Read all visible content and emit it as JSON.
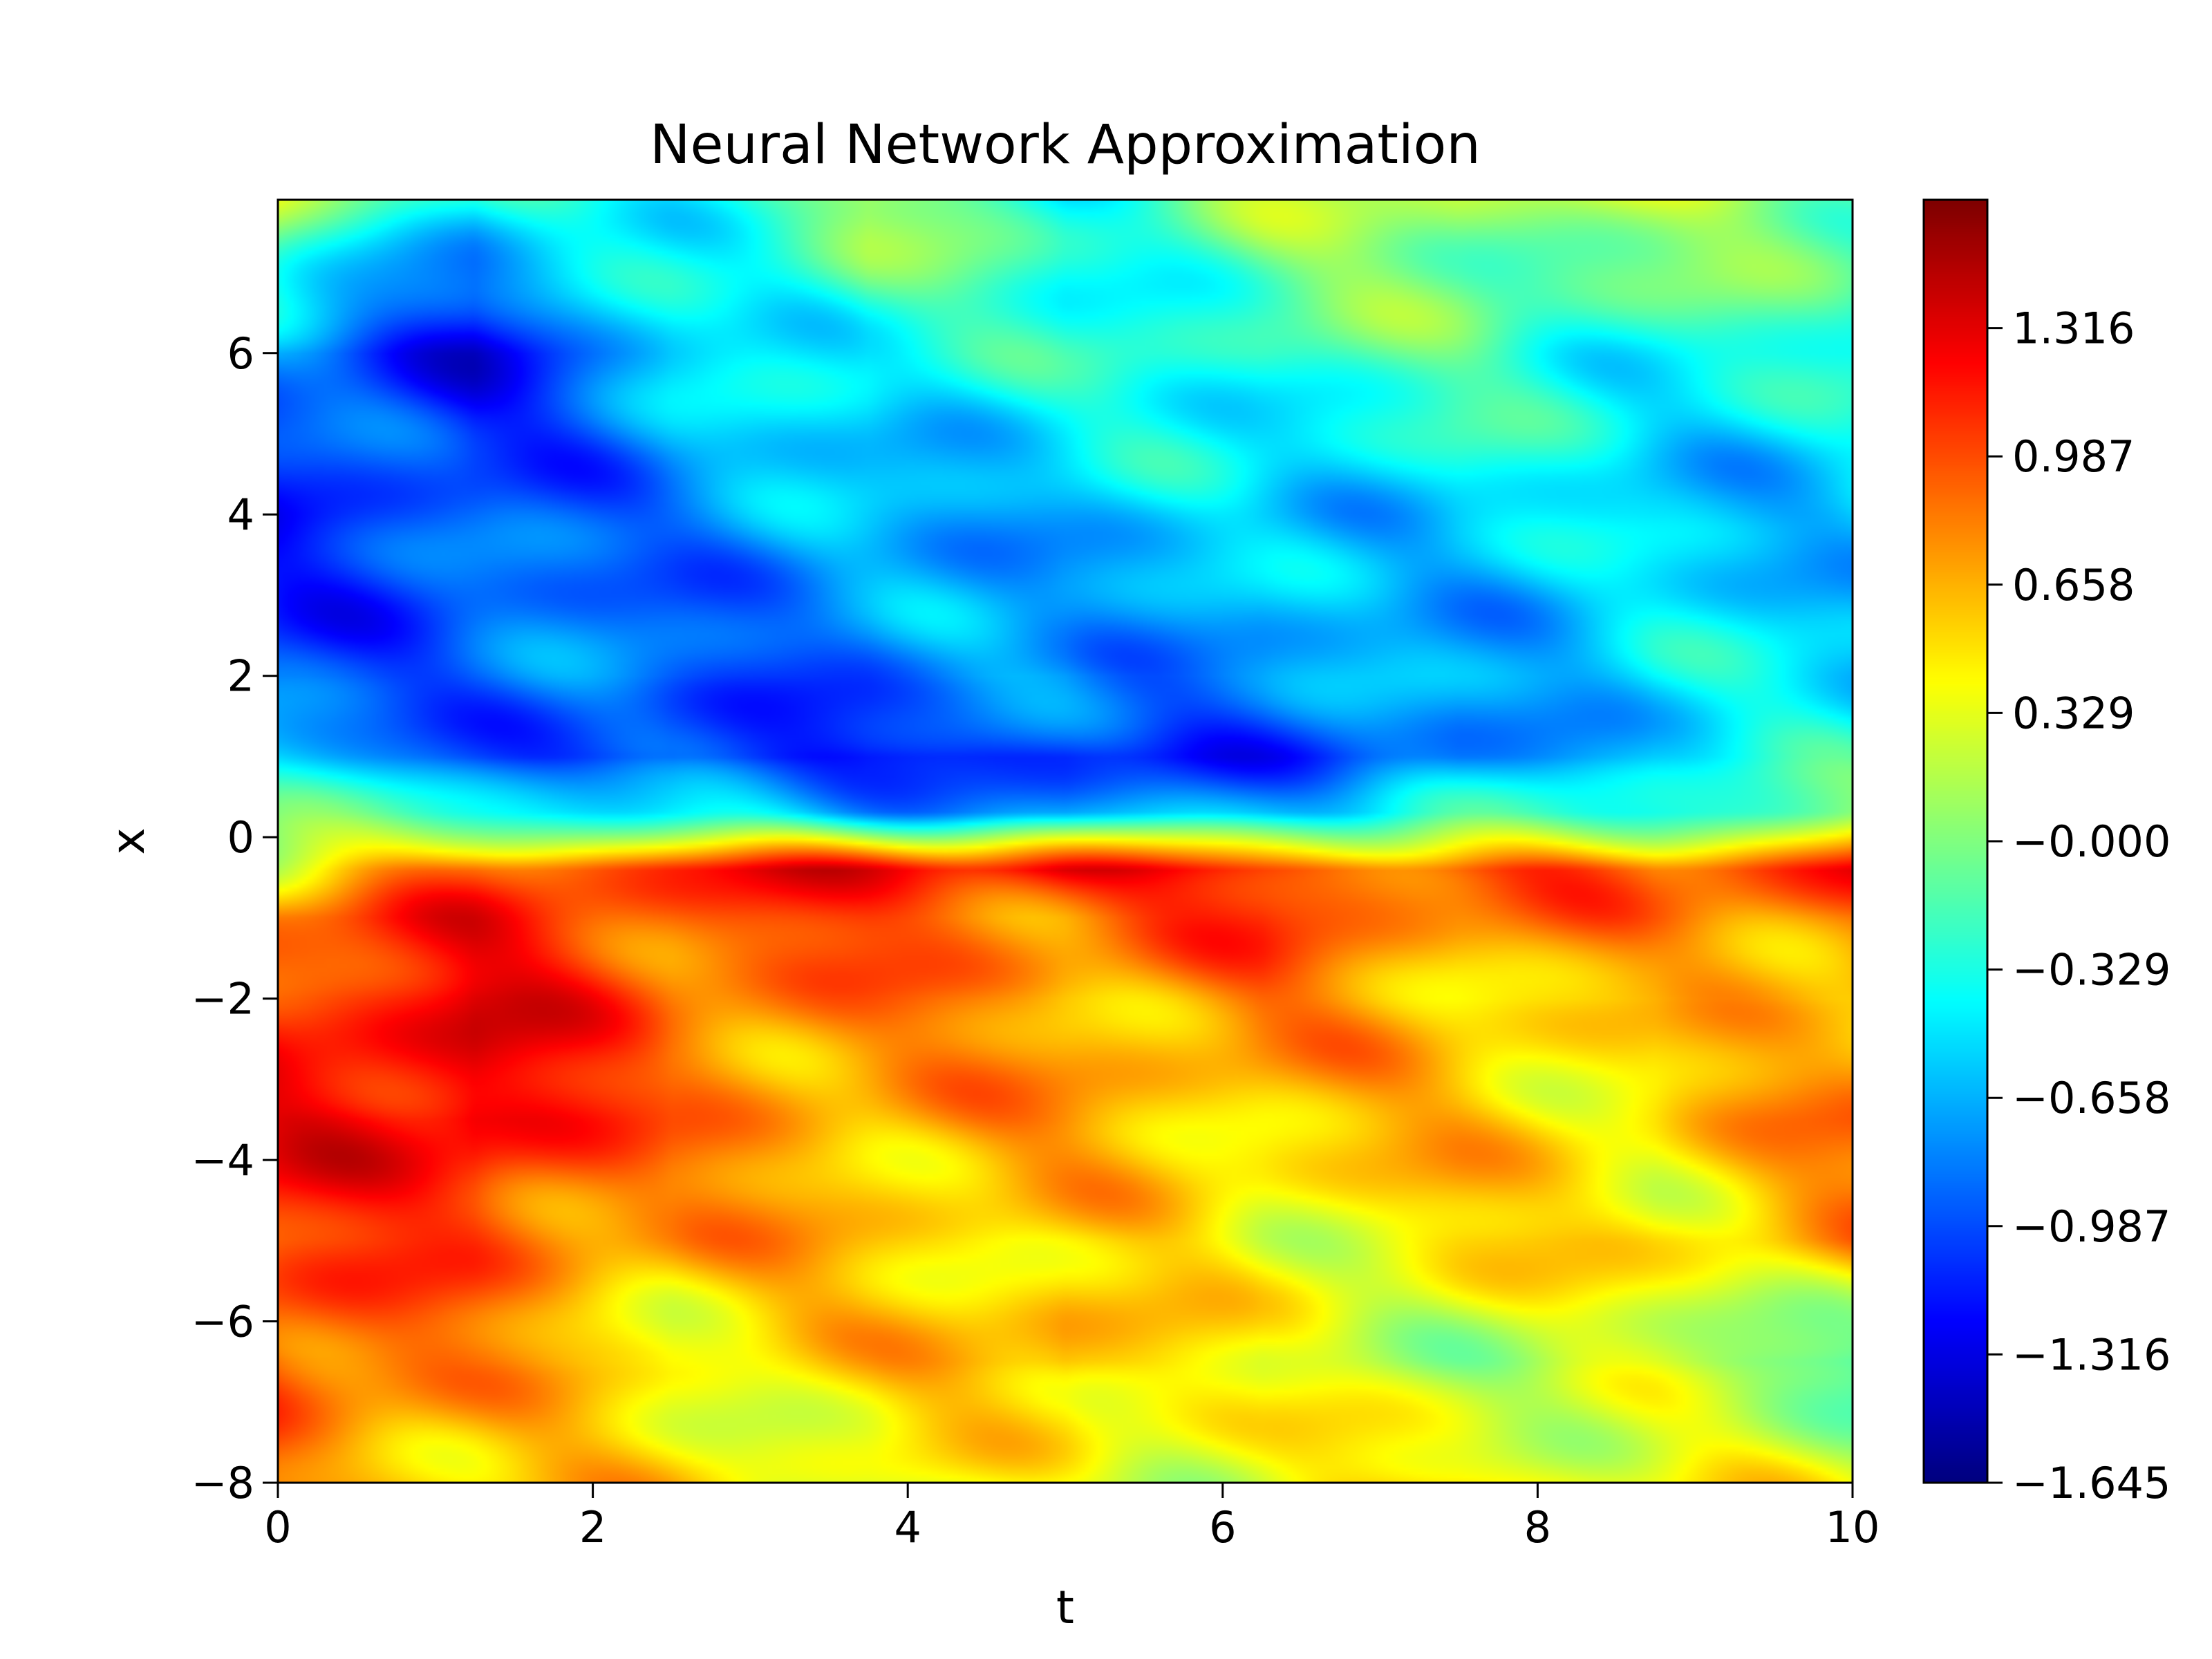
{
  "chart_data": {
    "type": "heatmap",
    "title": "Neural Network Approximation",
    "xlabel": "t",
    "ylabel": "x",
    "xlim": [
      0,
      10
    ],
    "ylim": [
      -8,
      7.9
    ],
    "x_ticks": [
      0,
      2,
      4,
      6,
      8,
      10
    ],
    "x_tick_labels": [
      "0",
      "2",
      "4",
      "6",
      "8",
      "10"
    ],
    "y_ticks": [
      -8,
      -6,
      -4,
      -2,
      0,
      2,
      4,
      6
    ],
    "y_tick_labels": [
      "−8",
      "−6",
      "−4",
      "−2",
      "0",
      "2",
      "4",
      "6"
    ],
    "grid": false,
    "colormap": "jet",
    "colorbar": {
      "vmin": -1.645,
      "vmax": 1.645,
      "ticks": [
        -1.645,
        -1.316,
        -0.987,
        -0.658,
        -0.329,
        0.0,
        0.329,
        0.658,
        0.987,
        1.316
      ],
      "tick_labels": [
        "−1.645",
        "−1.316",
        "−0.987",
        "−0.658",
        "−0.329",
        "−0.000",
        "0.329",
        "0.658",
        "0.987",
        "1.316"
      ]
    },
    "grid_t": [
      0,
      1.25,
      2.5,
      3.75,
      5,
      6.25,
      7.5,
      8.75,
      10
    ],
    "grid_x": [
      7.9,
      6,
      4,
      2,
      1,
      0.3,
      -0.4,
      -1,
      -2,
      -3.5,
      -5,
      -6.5,
      -8
    ],
    "values": [
      [
        0.3,
        -0.5,
        -0.3,
        0.1,
        -0.3,
        0.0,
        0.2,
        0.1,
        0.1
      ],
      [
        -0.9,
        -1.2,
        -0.6,
        -0.3,
        -0.4,
        -0.2,
        -0.2,
        -0.3,
        -0.4
      ],
      [
        -1.1,
        -1.0,
        -0.8,
        -0.7,
        -0.6,
        -0.6,
        -0.5,
        -0.6,
        -0.6
      ],
      [
        -1.0,
        -0.9,
        -0.9,
        -0.9,
        -0.7,
        -0.8,
        -0.7,
        -0.5,
        -0.5
      ],
      [
        -0.6,
        -0.9,
        -1.2,
        -1.1,
        -1.2,
        -1.0,
        -0.9,
        -0.5,
        -0.4
      ],
      [
        -0.2,
        -0.3,
        -0.4,
        -0.6,
        -0.8,
        -0.6,
        -0.4,
        -0.2,
        0.0
      ],
      [
        0.4,
        0.9,
        1.1,
        1.2,
        1.3,
        1.1,
        1.0,
        0.9,
        1.2
      ],
      [
        0.9,
        1.1,
        1.0,
        1.0,
        0.9,
        1.0,
        0.8,
        0.8,
        0.9
      ],
      [
        1.1,
        1.3,
        0.9,
        0.8,
        0.7,
        0.8,
        0.6,
        0.5,
        0.7
      ],
      [
        1.2,
        1.4,
        0.8,
        0.7,
        0.7,
        0.6,
        0.6,
        0.5,
        0.8
      ],
      [
        1.0,
        1.0,
        0.7,
        0.6,
        0.5,
        0.4,
        0.5,
        0.5,
        0.7
      ],
      [
        1.1,
        0.7,
        0.4,
        0.5,
        0.8,
        0.3,
        0.2,
        0.1,
        -0.1
      ],
      [
        0.8,
        0.6,
        0.5,
        0.3,
        0.3,
        0.4,
        0.5,
        0.4,
        0.3
      ]
    ]
  }
}
